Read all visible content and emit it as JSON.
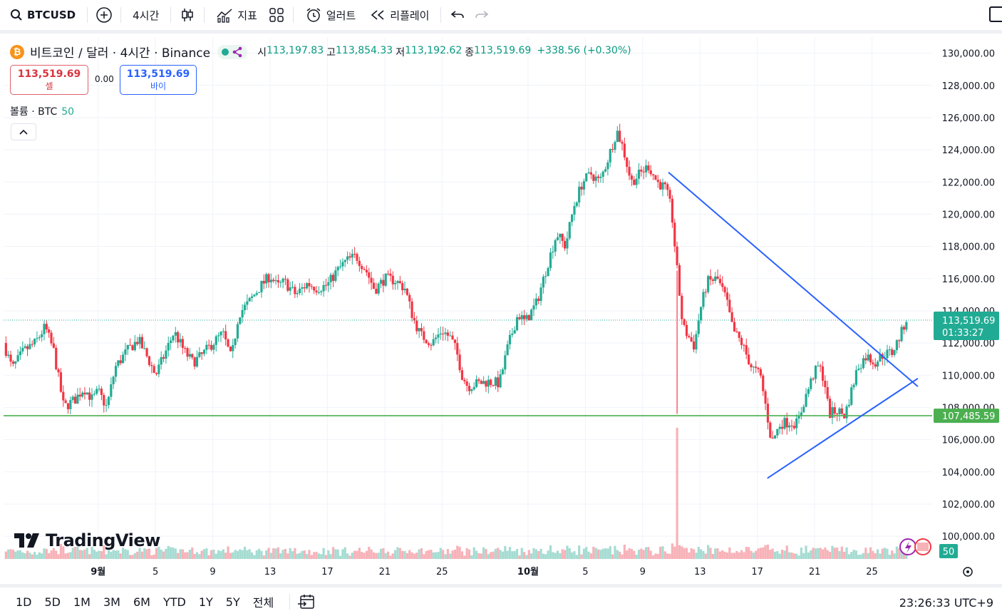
{
  "toolbar": {
    "symbol": "BTCUSD",
    "interval": "4시간",
    "indicators_label": "지표",
    "alert_label": "얼러트",
    "replay_label": "리플레이"
  },
  "legend": {
    "coin_letter": "₿",
    "title": "비트코인 / 달러 · 4시간 · Binance",
    "open_k": "시",
    "open": "113,197.83",
    "high_k": "고",
    "high": "113,854.33",
    "low_k": "저",
    "low": "113,192.62",
    "close_k": "종",
    "close": "113,519.69",
    "change": "+338.56 (+0.30%)"
  },
  "trade": {
    "sell_price": "113,519.69",
    "sell_label": "셀",
    "spread": "0.00",
    "buy_price": "113,519.69",
    "buy_label": "바이"
  },
  "volume_legend": {
    "label": "볼륨 · BTC",
    "value": "50"
  },
  "logo_text": "TradingView",
  "bottombar": {
    "ranges": [
      "1D",
      "5D",
      "1M",
      "3M",
      "6M",
      "YTD",
      "1Y",
      "5Y",
      "전체"
    ],
    "clock": "23:26:33 UTC+9"
  },
  "colors": {
    "up": "#22ab94",
    "down": "#f23645",
    "trendline": "#2962ff",
    "support": "#4caf50",
    "price_label": "#22ab94"
  },
  "chart_data": {
    "type": "candlestick",
    "y_ticks": [
      "130,000.00",
      "128,000.00",
      "126,000.00",
      "124,000.00",
      "122,000.00",
      "120,000.00",
      "118,000.00",
      "116,000.00",
      "114,000.00",
      "112,000.00",
      "110,000.00",
      "108,000.00",
      "106,000.00",
      "104,000.00",
      "102,000.00",
      "100,000.00"
    ],
    "y_tick_values": [
      130000,
      128000,
      126000,
      124000,
      122000,
      120000,
      118000,
      116000,
      114000,
      112000,
      110000,
      108000,
      106000,
      104000,
      102000,
      100000
    ],
    "ylim": [
      98500,
      131000
    ],
    "x_ticks": [
      {
        "label": "9월",
        "day": 32,
        "bold": true
      },
      {
        "label": "5",
        "day": 36
      },
      {
        "label": "9",
        "day": 40
      },
      {
        "label": "13",
        "day": 44
      },
      {
        "label": "17",
        "day": 48
      },
      {
        "label": "21",
        "day": 52
      },
      {
        "label": "25",
        "day": 56
      },
      {
        "label": "10월",
        "day": 62,
        "bold": true
      },
      {
        "label": "5",
        "day": 66
      },
      {
        "label": "9",
        "day": 70
      },
      {
        "label": "13",
        "day": 74
      },
      {
        "label": "17",
        "day": 78
      },
      {
        "label": "21",
        "day": 82
      },
      {
        "label": "25",
        "day": 86
      }
    ],
    "x_range_days": [
      25.4,
      90.2
    ],
    "last_price": "113,519.69",
    "countdown": "01:33:27",
    "support_price_label": "107,485.59",
    "support_level": 107485.59,
    "volume_badge": "50",
    "close_path": [
      [
        25.4,
        112.0
      ],
      [
        26.0,
        110.4
      ],
      [
        26.8,
        111.5
      ],
      [
        27.6,
        112.0
      ],
      [
        28.3,
        113.0
      ],
      [
        28.9,
        111.5
      ],
      [
        29.6,
        108.0
      ],
      [
        30.4,
        108.5
      ],
      [
        31.0,
        109.2
      ],
      [
        31.6,
        108.5
      ],
      [
        32.0,
        109.0
      ],
      [
        32.6,
        108.0
      ],
      [
        33.2,
        110.5
      ],
      [
        34.0,
        111.5
      ],
      [
        34.8,
        112.2
      ],
      [
        35.5,
        111.0
      ],
      [
        36.0,
        110.0
      ],
      [
        36.6,
        111.2
      ],
      [
        37.3,
        112.7
      ],
      [
        38.0,
        111.5
      ],
      [
        38.6,
        110.8
      ],
      [
        39.2,
        111.2
      ],
      [
        40.0,
        112.0
      ],
      [
        40.7,
        112.6
      ],
      [
        41.3,
        111.0
      ],
      [
        41.8,
        113.8
      ],
      [
        42.5,
        114.5
      ],
      [
        43.3,
        115.5
      ],
      [
        44.0,
        116.2
      ],
      [
        44.5,
        115.5
      ],
      [
        45.0,
        115.8
      ],
      [
        45.8,
        115.0
      ],
      [
        46.6,
        115.7
      ],
      [
        47.3,
        115.4
      ],
      [
        48.0,
        115.6
      ],
      [
        48.6,
        116.4
      ],
      [
        49.3,
        117.1
      ],
      [
        50.0,
        117.4
      ],
      [
        50.7,
        116.5
      ],
      [
        51.3,
        115.3
      ],
      [
        52.0,
        116.0
      ],
      [
        52.7,
        115.9
      ],
      [
        53.4,
        115.4
      ],
      [
        54.0,
        113.5
      ],
      [
        54.5,
        112.5
      ],
      [
        55.3,
        112.0
      ],
      [
        56.0,
        112.8
      ],
      [
        56.6,
        112.3
      ],
      [
        57.0,
        111.5
      ],
      [
        57.4,
        110.0
      ],
      [
        57.8,
        109.3
      ],
      [
        58.5,
        109.5
      ],
      [
        59.2,
        109.6
      ],
      [
        60.0,
        109.5
      ],
      [
        60.6,
        111.8
      ],
      [
        61.3,
        113.8
      ],
      [
        61.8,
        113.3
      ],
      [
        62.6,
        114.5
      ],
      [
        63.4,
        117.0
      ],
      [
        64.0,
        118.8
      ],
      [
        64.6,
        118.0
      ],
      [
        65.2,
        120.5
      ],
      [
        65.8,
        122.0
      ],
      [
        66.4,
        122.5
      ],
      [
        67.0,
        122.0
      ],
      [
        67.6,
        123.5
      ],
      [
        68.2,
        125.2
      ],
      [
        68.6,
        124.2
      ],
      [
        69.2,
        122.0
      ],
      [
        69.8,
        122.5
      ],
      [
        70.4,
        123.0
      ],
      [
        71.0,
        122.0
      ],
      [
        71.6,
        121.6
      ],
      [
        72.0,
        120.3
      ],
      [
        72.4,
        116.5
      ],
      [
        72.8,
        113.0
      ],
      [
        73.6,
        111.8
      ],
      [
        74.0,
        114.0
      ],
      [
        74.5,
        115.8
      ],
      [
        75.2,
        116.0
      ],
      [
        75.8,
        114.8
      ],
      [
        76.3,
        112.8
      ],
      [
        76.9,
        112.0
      ],
      [
        77.6,
        110.5
      ],
      [
        78.2,
        110.0
      ],
      [
        78.6,
        108.0
      ],
      [
        79.0,
        105.8
      ],
      [
        79.6,
        107.0
      ],
      [
        80.2,
        107.1
      ],
      [
        80.8,
        107.0
      ],
      [
        81.3,
        108.5
      ],
      [
        81.9,
        110.0
      ],
      [
        82.3,
        110.6
      ],
      [
        82.7,
        109.6
      ],
      [
        83.0,
        107.6
      ],
      [
        83.6,
        107.8
      ],
      [
        84.1,
        107.5
      ],
      [
        84.5,
        108.8
      ],
      [
        85.0,
        110.5
      ],
      [
        85.6,
        111.2
      ],
      [
        86.2,
        110.8
      ],
      [
        86.8,
        111.3
      ],
      [
        87.4,
        111.4
      ],
      [
        88.0,
        112.5
      ],
      [
        88.4,
        113.5
      ]
    ],
    "trendlines": [
      {
        "from": [
          71.8,
          122.6
        ],
        "to": [
          89.2,
          109.3
        ],
        "label": "descending"
      },
      {
        "from": [
          78.7,
          103.6
        ],
        "to": [
          89.2,
          109.8
        ],
        "label": "ascending"
      }
    ],
    "volume_spike_day": 72.4
  }
}
